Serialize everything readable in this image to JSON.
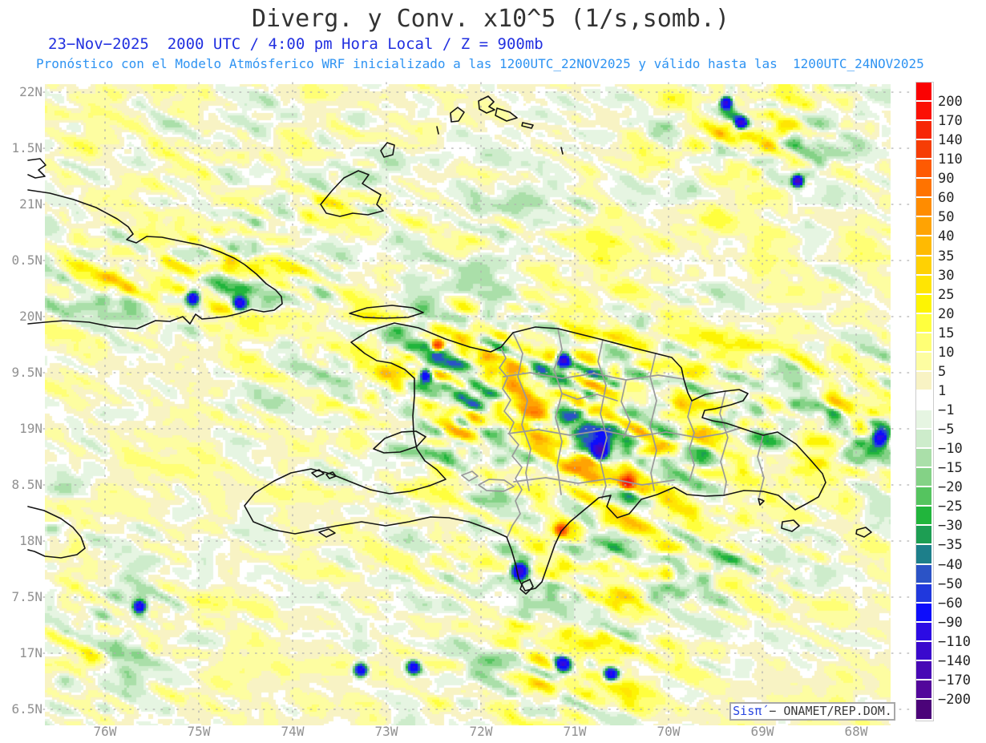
{
  "header": {
    "title": "Diverg. y Conv. x10^5 (1/s,somb.)",
    "subtitle1": "23−Nov−2025  2000 UTC / 4:00 pm Hora Local / Z = 900mb",
    "subtitle2": "Pronóstico con el Modelo Atmósferico WRF inicializado a las 1200UTC_22NOV2025 y válido hasta las  1200UTC_24NOV2025"
  },
  "watermark": {
    "brand": "Sisπ́",
    "text": " − ONAMET/REP.DOM."
  },
  "axes": {
    "y_labels": [
      "22N",
      "1.5N",
      "21N",
      "0.5N",
      "20N",
      "9.5N",
      "19N",
      "8.5N",
      "18N",
      "7.5N",
      "17N",
      "6.5N"
    ],
    "x_labels": [
      "76W",
      "75W",
      "74W",
      "73W",
      "72W",
      "71W",
      "70W",
      "69W",
      "68W"
    ]
  },
  "colorbar": {
    "labels": [
      "200",
      "170",
      "140",
      "110",
      "90",
      "60",
      "50",
      "40",
      "35",
      "30",
      "25",
      "20",
      "15",
      "10",
      "5",
      "1",
      "−1",
      "−5",
      "−10",
      "−15",
      "−20",
      "−25",
      "−30",
      "−35",
      "−40",
      "−50",
      "−60",
      "−90",
      "−110",
      "−140",
      "−170",
      "−200"
    ],
    "levels": [
      200,
      170,
      140,
      110,
      90,
      60,
      50,
      40,
      35,
      30,
      25,
      20,
      15,
      10,
      5,
      1,
      -1,
      -5,
      -10,
      -15,
      -20,
      -25,
      -30,
      -35,
      -40,
      -50,
      -60,
      -90,
      -110,
      -140,
      -170,
      -200
    ],
    "segment_colors": [
      "#fa0202",
      "#fb1004",
      "#f72706",
      "#f63d05",
      "#fe5a02",
      "#ff7300",
      "#ff8c00",
      "#ffa303",
      "#ffba02",
      "#ffd103",
      "#ffe503",
      "#fdf403",
      "#ffff3e",
      "#ffff75",
      "#fdfda1",
      "#f8f3c4",
      "#ffffff",
      "#e6f5e2",
      "#cdeccb",
      "#aadfa9",
      "#84d286",
      "#55c45f",
      "#21b53c",
      "#1d9e53",
      "#1d7f8a",
      "#2b53c6",
      "#2038dd",
      "#0d0dfb",
      "#2c0be4",
      "#3a09cd",
      "#4708b5",
      "#52079b",
      "#4b0379"
    ]
  },
  "colors": {
    "title": "#333333",
    "subtitle1": "#2230e0",
    "subtitle2": "#2e93f2",
    "axis_label": "#919191",
    "grid": "#b0b0b0",
    "coastline": "#141414",
    "admin": "#999999",
    "colorbar_label": "#242424",
    "watermark_brand": "#2846e0",
    "watermark_text": "#3a3a3a",
    "background": "#ffffff"
  },
  "map": {
    "coastlines": [
      "M35,237 L62,241 L92,249 L120,259 L146,273 L160,283 L166,292 L158,299 L170,303 L183,295 L202,296 L226,301 L251,306 L274,314 L292,322 L305,330 L320,342 L332,354 L344,362 L351,370 L352,379 L342,387 L329,389 L314,386 L299,391 L282,395 L264,397 L252,398 L244,392 L237,404 L228,395 L212,401 L194,400 L171,410 L141,408 L111,402 L80,400 L56,402 L35,404",
      "M35,200 L50,198 L57,206 L48,212 L56,220 L44,222 L35,218",
      "M35,632 L55,637 L76,647 L91,658 L101,670 L106,684 L96,692 L76,696 L56,694 L43,688 L35,686",
      "M438,427 L460,413 L492,403 L522,409 L556,423 L586,433 L612,439 L625,433 L640,415 L668,408 L696,410 L724,417 L752,424 L790,434 L818,441 L838,446 L850,459 L853,473 L858,490 L863,500 L880,492 L905,488 L922,486 L933,491 L927,500 L912,505 L892,510 L879,512 L876,521 L889,525 L906,528 L924,534 L939,539 L952,543 L970,539 L993,554 L1013,576 L1026,591 L1030,602 L1021,620 L1007,628 L992,636 L971,618 L952,613 L928,612 L903,618 L880,619 L857,617 L841,608 L820,617 L800,623 L785,641 L770,646 L757,632 L762,618 L747,621 L729,636 L711,651 L700,663 L692,680 L684,703 L676,726 L668,734 L655,737 L647,722 L643,703 L638,686 L632,670 L610,660 L585,651 L560,646 L537,645 L510,651 L481,656 L451,651 L420,656 L394,661 L368,666 L341,661 L316,651 L305,631 L318,615 L342,600 L363,590 L388,585 L412,591 L437,601 L462,611 L486,616 L511,613 L536,606 L556,598 L545,586 L530,575 L520,560 L516,540 L515,519 L517,494 L517,472 L505,461 L488,453 L470,450 L455,441 Z",
      "M436,391 L458,384 L489,381 L515,384 L528,390 L509,396 L478,397 L454,396 Z",
      "M466,560 L480,547 L501,539 L519,538 L531,545 L520,557 L499,564 L479,565 Z",
      "M400,255 L414,238 L429,222 L447,213 L460,218 L452,229 L463,236 L475,243 L470,255 L478,263 L459,268 L440,266 L424,270 L407,266 Z",
      "M475,188 L483,178 L492,181 L490,193 L479,196 Z",
      "M597,126 L609,120 L616,127 L610,133 L617,137 L607,141 L598,136 Z",
      "M620,135 L636,140 L645,147 L632,151 L618,144 Z",
      "M652,153 L665,156 L663,160 L651,157 Z",
      "M562,141 L571,134 L579,140 L572,151 L563,152 Z",
      "M545,158 L547,167",
      "M700,184 L702,192",
      "M976,651 L990,649 L997,656 L988,663 L975,659 Z",
      "M946,622 L953,625 L948,630 Z",
      "M652,727 L661,723 L665,732 L656,741 L649,735 Z",
      "M1069,661 L1080,658 L1087,664 L1078,670 L1068,666 Z",
      "M398,664 L410,660 L418,665 L407,670 Z",
      "M389,590 L398,586 L404,591 L395,595 Z",
      "M407,592 L415,589 L419,594 L411,597 Z"
    ],
    "admin_boundaries": [
      "M625,434 L631,447 L623,459 L633,471 L627,485 L637,499 L629,513 L641,527 L635,541 L647,555 L639,569 L651,583 L643,597 L651,611 L643,625 L649,641 L639,656 L633,670",
      "M640,415 L652,441 L646,470 L658,500 L651,530 L662,560 L656,590 L660,612",
      "M696,410 L701,436 L691,461 L701,491 L693,521 L701,551 L695,581 L700,617",
      "M752,424 L746,451 L756,481 L749,516 L757,546 L749,576 L756,606 L751,622",
      "M818,441 L811,470 L819,500 L811,532 L819,562 L812,590 L816,612",
      "M628,470 L661,465 L701,472 L741,466 L781,474 L821,468 L853,473",
      "M634,541 L671,536 L711,543 L751,537 L791,545 L831,539 L871,546 L901,541 L924,534",
      "M641,601 L681,596 L721,603 L761,597 L801,605 L841,599",
      "M905,488 L898,516 L908,546 L899,576 L906,601 L903,618",
      "M952,543 L945,570 L953,596 L947,620",
      "M781,474 L775,501 L786,526 L778,546",
      "M863,500 L858,520 L866,540 L860,560 L866,580 L860,600",
      "M701,491 L720,498 L745,492 L770,500",
      "M597,605 L610,598 L629,599 L641,607 L628,613 L607,612 Z",
      "M576,593 L589,588 L596,594 L585,600 Z"
    ]
  },
  "field": {
    "bias": 3,
    "base_amplitude": 13,
    "octaves": [
      {
        "angle_deg": -27,
        "len": 58,
        "wid": 13,
        "weight": 0.5,
        "seed": 11,
        "grid": 97
      },
      {
        "angle_deg": -12,
        "len": 40,
        "wid": 17,
        "weight": 0.33,
        "seed": 23,
        "grid": 89
      },
      {
        "angle_deg": 0,
        "len": 16,
        "wid": 12,
        "weight": 0.27,
        "seed": 37,
        "grid": 83
      }
    ],
    "amplitude_bumps": [
      [
        720,
        560,
        280,
        150,
        26
      ],
      [
        520,
        455,
        110,
        60,
        40
      ],
      [
        720,
        520,
        130,
        90,
        48
      ],
      [
        790,
        712,
        180,
        45,
        34
      ],
      [
        980,
        500,
        170,
        90,
        22
      ],
      [
        270,
        345,
        110,
        55,
        36
      ],
      [
        120,
        355,
        80,
        55,
        26
      ],
      [
        950,
        165,
        110,
        60,
        44
      ],
      [
        700,
        830,
        130,
        70,
        30
      ],
      [
        150,
        800,
        110,
        90,
        22
      ],
      [
        435,
        240,
        62,
        36,
        22
      ],
      [
        1090,
        545,
        55,
        50,
        26
      ],
      [
        80,
        655,
        45,
        40,
        26
      ],
      [
        240,
        180,
        190,
        80,
        10
      ],
      [
        600,
        320,
        300,
        120,
        8
      ]
    ],
    "spikes": [
      [
        783,
        602,
        7,
        185
      ],
      [
        546,
        431,
        6,
        130
      ],
      [
        700,
        661,
        6,
        120
      ],
      [
        906,
        128,
        7,
        -125
      ],
      [
        924,
        153,
        7,
        -115
      ],
      [
        995,
        226,
        6,
        -160
      ],
      [
        748,
        563,
        9,
        -135
      ],
      [
        703,
        450,
        8,
        -125
      ],
      [
        531,
        468,
        8,
        -115
      ],
      [
        648,
        713,
        9,
        -135
      ],
      [
        1098,
        546,
        9,
        -115
      ],
      [
        241,
        372,
        8,
        -105
      ],
      [
        299,
        379,
        8,
        -95
      ],
      [
        174,
        757,
        7,
        -95
      ],
      [
        702,
        829,
        9,
        -105
      ],
      [
        762,
        841,
        8,
        -95
      ],
      [
        450,
        836,
        8,
        -100
      ],
      [
        516,
        833,
        8,
        -100
      ]
    ]
  }
}
